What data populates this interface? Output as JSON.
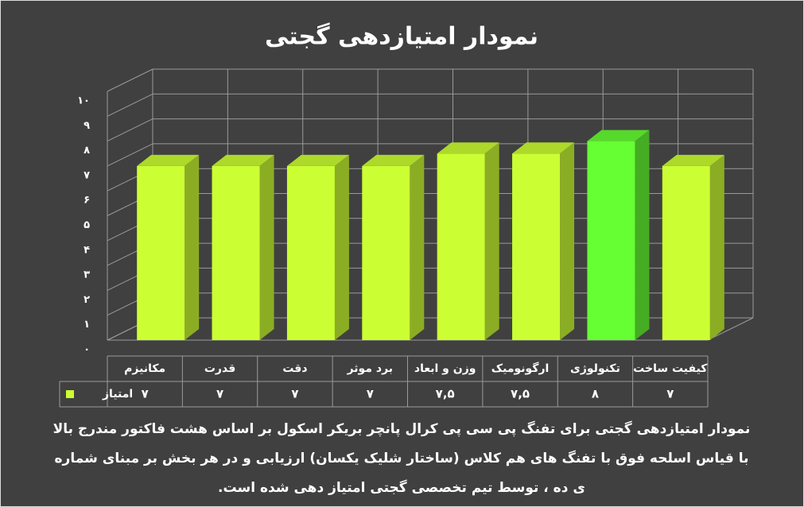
{
  "chart_data": {
    "type": "bar3d",
    "title": "نمودار امتیازدهی گجتی",
    "categories": [
      "مکانیزم",
      "قدرت",
      "دقت",
      "برد موثر",
      "وزن و ابعاد",
      "ارگونومیک",
      "تکنولوژی",
      "کیفیت ساخت"
    ],
    "series": [
      {
        "name": "امتیاز",
        "color": "#ccff33",
        "colors": [
          "#ccff33",
          "#ccff33",
          "#ccff33",
          "#ccff33",
          "#ccff33",
          "#ccff33",
          "#66ff33",
          "#ccff33"
        ],
        "values": [
          7,
          7,
          7,
          7,
          7.5,
          7.5,
          8,
          7
        ],
        "value_labels": [
          "۷",
          "۷",
          "۷",
          "۷",
          "۷,۵",
          "۷,۵",
          "۸",
          "۷"
        ]
      }
    ],
    "ylim": [
      0,
      10
    ],
    "yticks": [
      {
        "value": 0,
        "label": "۰"
      },
      {
        "value": 1,
        "label": "۱"
      },
      {
        "value": 2,
        "label": "۲"
      },
      {
        "value": 3,
        "label": "۳"
      },
      {
        "value": 4,
        "label": "۴"
      },
      {
        "value": 5,
        "label": "۵"
      },
      {
        "value": 6,
        "label": "۶"
      },
      {
        "value": 7,
        "label": "۷"
      },
      {
        "value": 8,
        "label": "۸"
      },
      {
        "value": 9,
        "label": "۹"
      },
      {
        "value": 10,
        "label": "۱۰"
      }
    ],
    "grid": true,
    "caption": [
      "نمودار امتیازدهی گجتی برای تفنگ پی سی پی کرال پانچر بریکر اسکول بر اساس هشت فاکتور مندرج بالا",
      "با قیاس اسلحه فوق با تفنگ های هم کلاس (ساختار شلیک یکسان) ارزیابی و در هر بخش بر مبنای شماره",
      "ی ده ، توسط تیم تخصصی گجتی امتیاز دهی شده است."
    ]
  }
}
